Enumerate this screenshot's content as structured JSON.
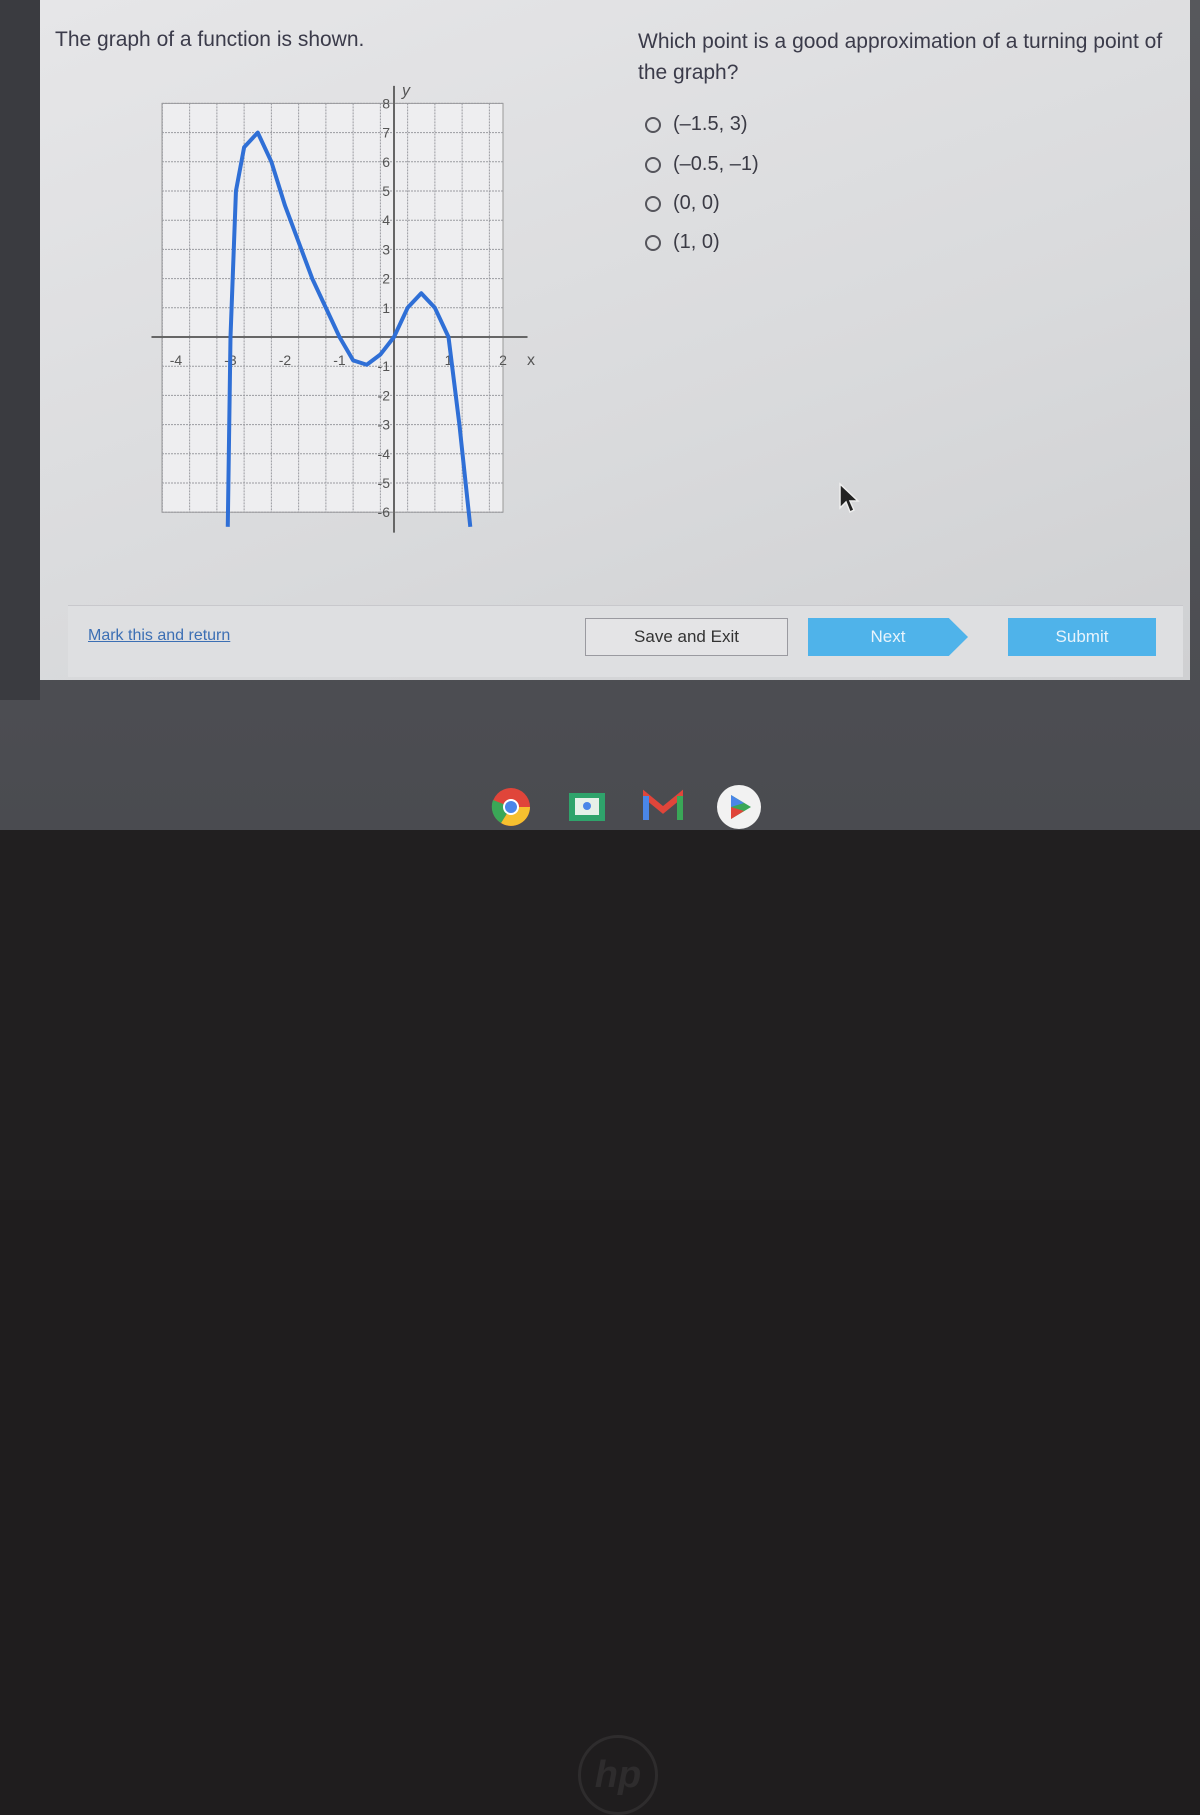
{
  "question": {
    "left_prompt": "The graph of a function is shown.",
    "prompt": "Which point is a good approximation of a turning point of the graph?",
    "options": [
      {
        "label": "(–1.5, 3)"
      },
      {
        "label": "(–0.5, –1)"
      },
      {
        "label": "(0, 0)"
      },
      {
        "label": "(1, 0)"
      }
    ]
  },
  "footer": {
    "mark_link": "Mark this and return",
    "save_exit": "Save and Exit",
    "next": "Next",
    "submit": "Submit"
  },
  "shelf": {
    "apps": [
      "chrome-icon",
      "classroom-icon",
      "gmail-icon",
      "play-store-icon"
    ]
  },
  "bezel": {
    "logo": "hp"
  },
  "colors": {
    "curve": "#2f6fd6",
    "button": "#4fb3ea",
    "link": "#3c6fb4"
  },
  "chart_data": {
    "type": "line",
    "xlabel": "x",
    "ylabel": "y",
    "xlim": [
      -4,
      2
    ],
    "ylim": [
      -6,
      8
    ],
    "grid": true,
    "x_ticks": [
      "-4",
      "-3",
      "-2",
      "-1",
      "1",
      "2"
    ],
    "y_ticks": [
      "8",
      "7",
      "6",
      "5",
      "4",
      "3",
      "2",
      "1",
      "-1",
      "-2",
      "-3",
      "-4",
      "-5",
      "-6"
    ],
    "series": [
      {
        "x": [
          -3.05,
          -3.0,
          -2.9,
          -2.75,
          -2.5,
          -2.25,
          -2.0,
          -1.5,
          -1.0,
          -0.75,
          -0.5,
          -0.25,
          0,
          0.25,
          0.5,
          0.75,
          1.0,
          1.2,
          1.4
        ],
        "y": [
          -6.5,
          0,
          5,
          6.5,
          7,
          6,
          4.5,
          2,
          0,
          -0.8,
          -0.95,
          -0.6,
          0,
          1,
          1.5,
          1,
          0,
          -3,
          -6.5
        ]
      }
    ]
  }
}
